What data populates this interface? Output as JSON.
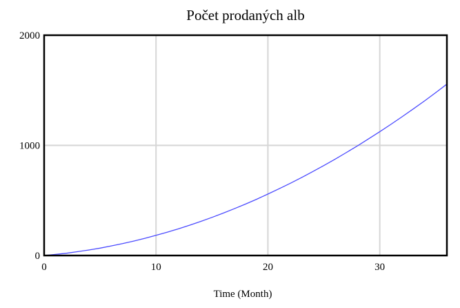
{
  "chart_data": {
    "type": "line",
    "title": "Počet prodaných alb",
    "xlabel": "Time (Month)",
    "ylabel": "",
    "xlim": [
      0,
      36
    ],
    "ylim": [
      0,
      2000
    ],
    "xticks": [
      "0",
      "10",
      "20",
      "30"
    ],
    "yticks": [
      "0",
      "1000",
      "2000"
    ],
    "grid": true,
    "line_color": "#4a4aff",
    "x": [
      0,
      1,
      2,
      3,
      4,
      5,
      6,
      7,
      8,
      9,
      10,
      11,
      12,
      13,
      14,
      15,
      16,
      17,
      18,
      19,
      20,
      21,
      22,
      23,
      24,
      25,
      26,
      27,
      28,
      29,
      30,
      31,
      32,
      33,
      34,
      35,
      36
    ],
    "series": [
      {
        "values": [
          0,
          10,
          21,
          35,
          50,
          67,
          87,
          108,
          131,
          156,
          183,
          212,
          242,
          275,
          310,
          346,
          385,
          425,
          467,
          511,
          558,
          606,
          656,
          707,
          761,
          817,
          874,
          934,
          995,
          1059,
          1124,
          1191,
          1260,
          1331,
          1404,
          1479,
          1556
        ]
      }
    ]
  }
}
